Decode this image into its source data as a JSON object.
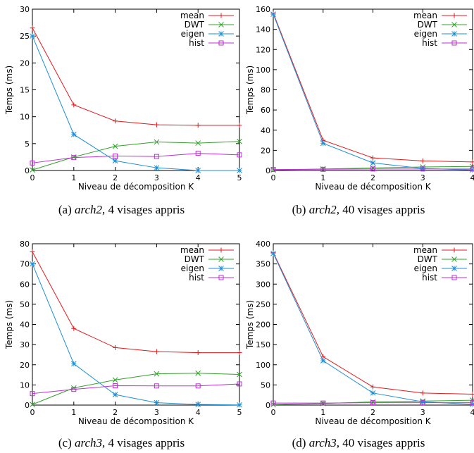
{
  "chart_data": [
    {
      "type": "line",
      "xlabel": "Niveau de décomposition K",
      "ylabel": "Temps (ms)",
      "xlim": [
        0,
        5
      ],
      "ylim": [
        0,
        30
      ],
      "xticks": [
        "0",
        "1",
        "2",
        "3",
        "4",
        "5"
      ],
      "yticks": [
        "0",
        "5",
        "10",
        "15",
        "20",
        "25",
        "30"
      ],
      "x": [
        0,
        1,
        2,
        3,
        4,
        5
      ],
      "legend": "top-right",
      "series": [
        {
          "name": "mean",
          "color": "#e41a1c",
          "marker": "plus",
          "values": [
            26.5,
            12.2,
            9.2,
            8.5,
            8.4,
            8.4
          ]
        },
        {
          "name": "DWT",
          "color": "#33a02c",
          "marker": "cross",
          "values": [
            0.1,
            2.5,
            4.5,
            5.3,
            5.1,
            5.4
          ]
        },
        {
          "name": "eigen",
          "color": "#1f8fd6",
          "marker": "star",
          "values": [
            25.0,
            6.7,
            1.8,
            0.5,
            0.0,
            0.0
          ]
        },
        {
          "name": "hist",
          "color": "#bf2fd6",
          "marker": "square",
          "values": [
            1.4,
            2.4,
            2.7,
            2.6,
            3.2,
            2.9
          ]
        }
      ],
      "caption": {
        "pre": "(a) ",
        "italic": "arch2",
        "post": ", 4 visages appris"
      }
    },
    {
      "type": "line",
      "xlabel": "Niveau de décomposition K",
      "ylabel": "Temps (ms)",
      "xlim": [
        0,
        4
      ],
      "ylim": [
        0,
        160
      ],
      "xticks": [
        "0",
        "1",
        "2",
        "3",
        "4"
      ],
      "yticks": [
        "0",
        "20",
        "40",
        "60",
        "80",
        "100",
        "120",
        "140",
        "160"
      ],
      "x": [
        0,
        1,
        2,
        3,
        4
      ],
      "legend": "top-right",
      "series": [
        {
          "name": "mean",
          "color": "#e41a1c",
          "marker": "plus",
          "values": [
            156,
            30,
            12.5,
            9.5,
            8.5
          ]
        },
        {
          "name": "DWT",
          "color": "#33a02c",
          "marker": "cross",
          "values": [
            0.5,
            1.5,
            2.5,
            3.5,
            4.0
          ]
        },
        {
          "name": "eigen",
          "color": "#1f8fd6",
          "marker": "star",
          "values": [
            155,
            27,
            7.5,
            2.0,
            0.5
          ]
        },
        {
          "name": "hist",
          "color": "#bf2fd6",
          "marker": "square",
          "values": [
            1.0,
            1.2,
            1.5,
            1.5,
            1.5
          ]
        }
      ],
      "caption": {
        "pre": "(b) ",
        "italic": "arch2",
        "post": ", 40 visages appris"
      }
    },
    {
      "type": "line",
      "xlabel": "Niveau de décomposition K",
      "ylabel": "Temps (ms)",
      "xlim": [
        0,
        5
      ],
      "ylim": [
        0,
        80
      ],
      "xticks": [
        "0",
        "1",
        "2",
        "3",
        "4",
        "5"
      ],
      "yticks": [
        "0",
        "10",
        "20",
        "30",
        "40",
        "50",
        "60",
        "70",
        "80"
      ],
      "x": [
        0,
        1,
        2,
        3,
        4,
        5
      ],
      "legend": "top-right",
      "series": [
        {
          "name": "mean",
          "color": "#e41a1c",
          "marker": "plus",
          "values": [
            76,
            38,
            28.5,
            26.5,
            26,
            26
          ]
        },
        {
          "name": "DWT",
          "color": "#33a02c",
          "marker": "cross",
          "values": [
            0.3,
            8.5,
            12.5,
            15.5,
            15.8,
            15.2
          ]
        },
        {
          "name": "eigen",
          "color": "#1f8fd6",
          "marker": "star",
          "values": [
            70,
            20.5,
            5.2,
            1.2,
            0.3,
            0.1
          ]
        },
        {
          "name": "hist",
          "color": "#bf2fd6",
          "marker": "square",
          "values": [
            5.7,
            7.8,
            9.6,
            9.5,
            9.5,
            10.5
          ]
        }
      ],
      "caption": {
        "pre": "(c) ",
        "italic": "arch3",
        "post": ", 4 visages appris"
      }
    },
    {
      "type": "line",
      "xlabel": "Niveau de décomposition K",
      "ylabel": "Temps (ms)",
      "xlim": [
        0,
        4
      ],
      "ylim": [
        0,
        400
      ],
      "xticks": [
        "0",
        "1",
        "2",
        "3",
        "4"
      ],
      "yticks": [
        "0",
        "50",
        "100",
        "150",
        "200",
        "250",
        "300",
        "350",
        "400"
      ],
      "x": [
        0,
        1,
        2,
        3,
        4
      ],
      "legend": "top-right",
      "series": [
        {
          "name": "mean",
          "color": "#e41a1c",
          "marker": "plus",
          "values": [
            378,
            120,
            45,
            30,
            27
          ]
        },
        {
          "name": "DWT",
          "color": "#33a02c",
          "marker": "cross",
          "values": [
            1,
            4,
            8,
            10,
            12
          ]
        },
        {
          "name": "eigen",
          "color": "#1f8fd6",
          "marker": "star",
          "values": [
            376,
            110,
            30,
            8,
            2
          ]
        },
        {
          "name": "hist",
          "color": "#bf2fd6",
          "marker": "square",
          "values": [
            5,
            5,
            6,
            6,
            6
          ]
        }
      ],
      "caption": {
        "pre": "(d) ",
        "italic": "arch3",
        "post": ", 40 visages appris"
      }
    }
  ]
}
